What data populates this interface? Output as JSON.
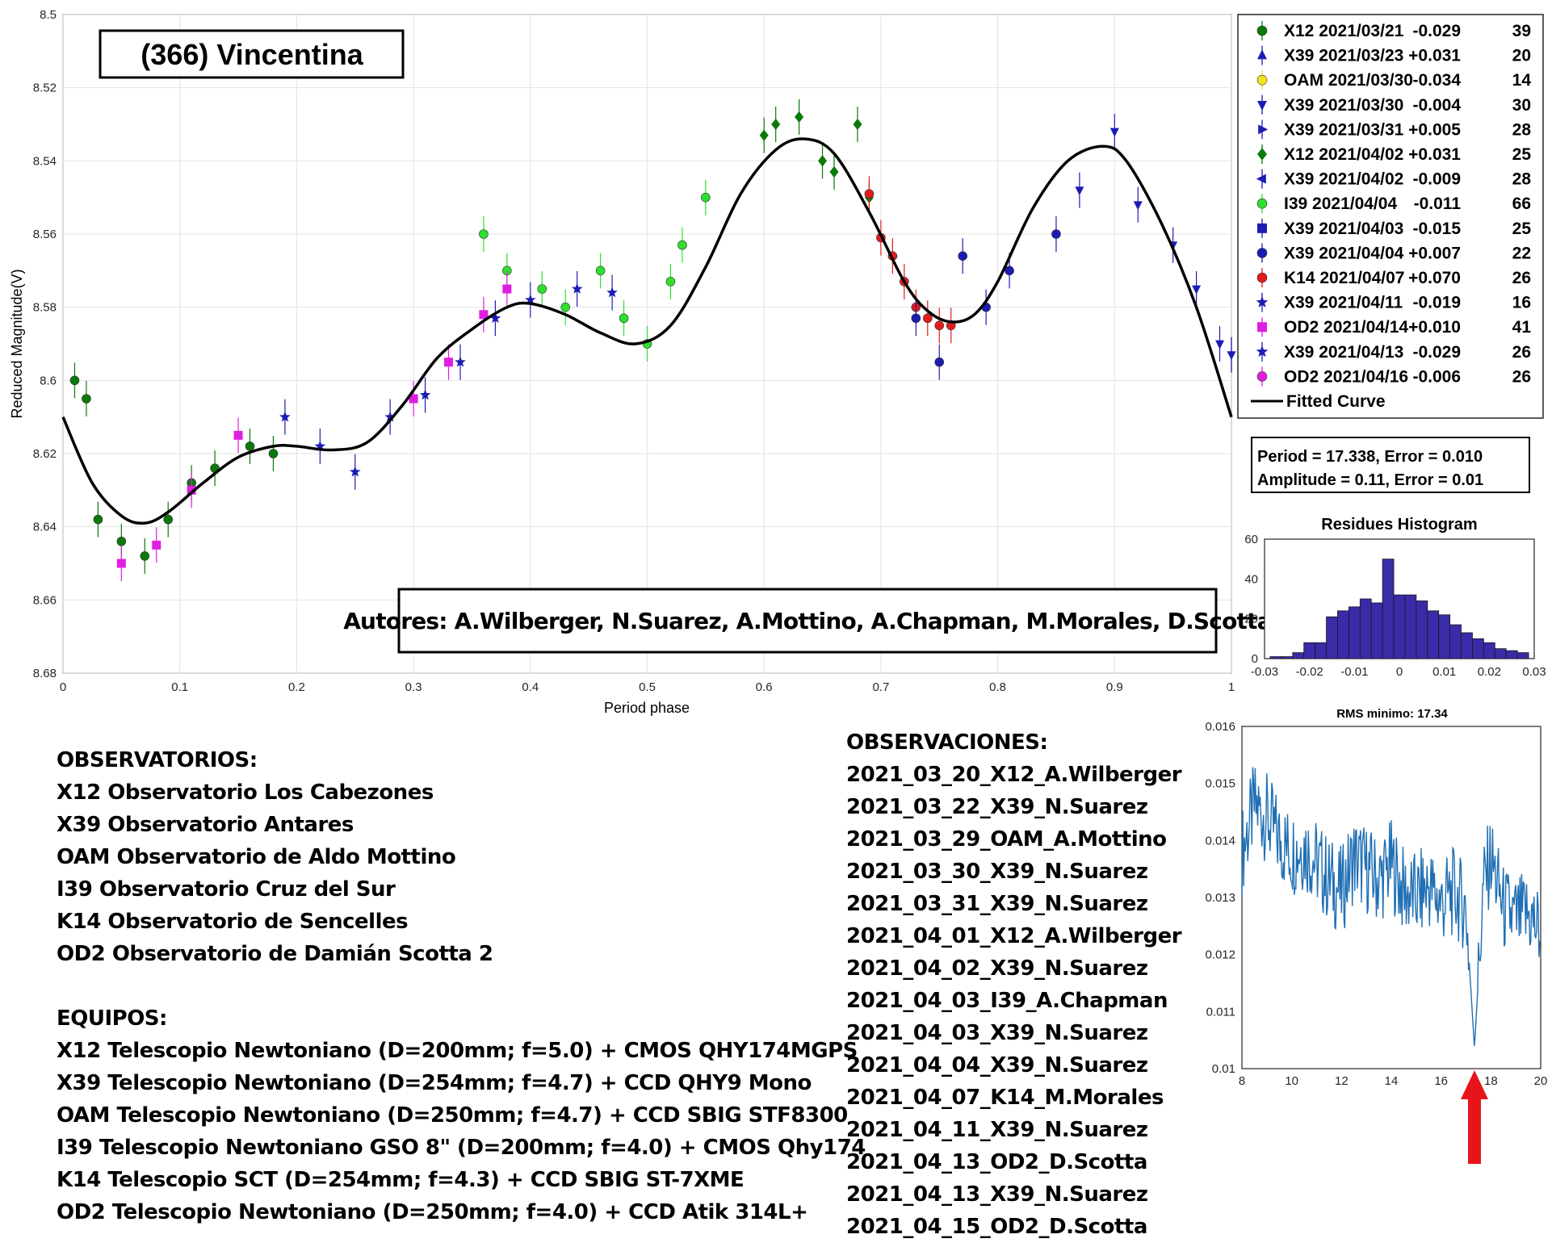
{
  "chart_data": [
    {
      "type": "scatter",
      "title": "(366) Vincentina",
      "xlabel": "Period phase",
      "ylabel": "Reduced Magnitude(V)",
      "xlim": [
        0,
        1
      ],
      "ylim": [
        8.5,
        8.68
      ],
      "y_inverted": true,
      "xticks": [
        "0",
        "0.1",
        "0.2",
        "0.3",
        "0.4",
        "0.5",
        "0.6",
        "0.7",
        "0.8",
        "0.9",
        "1"
      ],
      "yticks": [
        "8.5",
        "8.52",
        "8.54",
        "8.56",
        "8.58",
        "8.6",
        "8.62",
        "8.64",
        "8.66",
        "8.68"
      ],
      "grid": true,
      "legend_position": "right",
      "legend": [
        {
          "code": "X12",
          "date": "2021/03/21",
          "offset": "-0.029",
          "count": "39",
          "color": "#0a7a0a",
          "marker": "circle"
        },
        {
          "code": "X39",
          "date": "2021/03/23",
          "offset": "+0.031",
          "count": "20",
          "color": "#1c1cb4",
          "marker": "triangle-up"
        },
        {
          "code": "OAM",
          "date": "2021/03/30",
          "offset": "-0.034",
          "count": "14",
          "color": "#f2e21e",
          "marker": "circle"
        },
        {
          "code": "X39",
          "date": "2021/03/30",
          "offset": "-0.004",
          "count": "30",
          "color": "#1c1cb4",
          "marker": "triangle-down"
        },
        {
          "code": "X39",
          "date": "2021/03/31",
          "offset": "+0.005",
          "count": "28",
          "color": "#1c1cb4",
          "marker": "triangle-right"
        },
        {
          "code": "X12",
          "date": "2021/04/02",
          "offset": "+0.031",
          "count": "25",
          "color": "#0a7a0a",
          "marker": "diamond"
        },
        {
          "code": "X39",
          "date": "2021/04/02",
          "offset": "-0.009",
          "count": "28",
          "color": "#1c1cb4",
          "marker": "triangle-left"
        },
        {
          "code": "I39",
          "date": "2021/04/04",
          "offset": "-0.011",
          "count": "66",
          "color": "#2ee02e",
          "marker": "circle"
        },
        {
          "code": "X39",
          "date": "2021/04/03",
          "offset": "-0.015",
          "count": "25",
          "color": "#1c1cb4",
          "marker": "square"
        },
        {
          "code": "X39",
          "date": "2021/04/04",
          "offset": "+0.007",
          "count": "22",
          "color": "#1c1cb4",
          "marker": "circle"
        },
        {
          "code": "K14",
          "date": "2021/04/07",
          "offset": "+0.070",
          "count": "26",
          "color": "#e21c1c",
          "marker": "circle"
        },
        {
          "code": "X39",
          "date": "2021/04/11",
          "offset": "-0.019",
          "count": "16",
          "color": "#1c1cb4",
          "marker": "star"
        },
        {
          "code": "OD2",
          "date": "2021/04/14",
          "offset": "+0.010",
          "count": "41",
          "color": "#e01ee0",
          "marker": "square"
        },
        {
          "code": "X39",
          "date": "2021/04/13",
          "offset": "-0.029",
          "count": "26",
          "color": "#1c1cb4",
          "marker": "star"
        },
        {
          "code": "OD2",
          "date": "2021/04/16",
          "offset": "-0.006",
          "count": "26",
          "color": "#e01ee0",
          "marker": "circle"
        }
      ],
      "fitted_curve_label": "Fitted Curve",
      "fitted_curve": {
        "x": [
          0,
          0.025,
          0.05,
          0.07,
          0.09,
          0.12,
          0.15,
          0.18,
          0.2,
          0.23,
          0.26,
          0.29,
          0.32,
          0.35,
          0.38,
          0.4,
          0.43,
          0.46,
          0.49,
          0.52,
          0.55,
          0.58,
          0.61,
          0.635,
          0.66,
          0.69,
          0.72,
          0.74,
          0.76,
          0.78,
          0.8,
          0.83,
          0.86,
          0.89,
          0.91,
          0.94,
          0.97,
          1.0
        ],
        "y": [
          8.61,
          8.628,
          8.637,
          8.639,
          8.636,
          8.628,
          8.621,
          8.618,
          8.618,
          8.619,
          8.617,
          8.607,
          8.594,
          8.586,
          8.58,
          8.579,
          8.582,
          8.587,
          8.59,
          8.585,
          8.569,
          8.549,
          8.537,
          8.534,
          8.538,
          8.554,
          8.573,
          8.581,
          8.584,
          8.582,
          8.573,
          8.553,
          8.54,
          8.536,
          8.54,
          8.557,
          8.58,
          8.61
        ]
      },
      "series_points": [
        {
          "name": "X12 2021/03/21",
          "x": [
            0.01,
            0.02,
            0.03,
            0.05,
            0.07,
            0.09,
            0.11,
            0.13,
            0.16,
            0.18
          ],
          "y": [
            8.6,
            8.605,
            8.638,
            8.644,
            8.648,
            8.638,
            8.628,
            8.624,
            8.618,
            8.62
          ]
        },
        {
          "name": "X39 2021/03/30",
          "x": [
            0.87,
            0.9,
            0.92,
            0.95,
            0.97,
            0.99,
            1.0
          ],
          "y": [
            8.548,
            8.532,
            8.552,
            8.563,
            8.575,
            8.59,
            8.593
          ]
        },
        {
          "name": "X12 2021/04/02",
          "x": [
            0.6,
            0.61,
            0.63,
            0.65,
            0.66,
            0.68,
            0.69
          ],
          "y": [
            8.533,
            8.53,
            8.528,
            8.54,
            8.543,
            8.53,
            8.55
          ]
        },
        {
          "name": "I39 2021/04/04",
          "x": [
            0.36,
            0.38,
            0.41,
            0.43,
            0.46,
            0.48,
            0.5,
            0.52,
            0.53,
            0.55
          ],
          "y": [
            8.56,
            8.57,
            8.575,
            8.58,
            8.57,
            8.583,
            8.59,
            8.573,
            8.563,
            8.55
          ]
        },
        {
          "name": "K14 2021/04/07",
          "x": [
            0.69,
            0.7,
            0.71,
            0.72,
            0.73,
            0.74,
            0.75,
            0.76
          ],
          "y": [
            8.549,
            8.561,
            8.566,
            8.573,
            8.58,
            8.583,
            8.585,
            8.585
          ]
        },
        {
          "name": "X39 2021/04/04",
          "x": [
            0.73,
            0.75,
            0.77,
            0.79,
            0.81,
            0.85
          ],
          "y": [
            8.583,
            8.595,
            8.566,
            8.58,
            8.57,
            8.56
          ]
        },
        {
          "name": "OD2 2021/04/14",
          "x": [
            0.05,
            0.08,
            0.11,
            0.15,
            0.3,
            0.33,
            0.36,
            0.38
          ],
          "y": [
            8.65,
            8.645,
            8.63,
            8.615,
            8.605,
            8.595,
            8.582,
            8.575
          ]
        },
        {
          "name": "X39 2021/04/11",
          "x": [
            0.19,
            0.22,
            0.25,
            0.28,
            0.31,
            0.34,
            0.37,
            0.4,
            0.44,
            0.47
          ],
          "y": [
            8.61,
            8.618,
            8.625,
            8.61,
            8.604,
            8.595,
            8.583,
            8.578,
            8.575,
            8.576
          ]
        }
      ],
      "fit_box": {
        "line1": "Period =  17.338, Error = 0.010",
        "line2": "Amplitude = 0.11, Error = 0.01"
      },
      "authors": "Autores: A.Wilberger, N.Suarez, A.Mottino, A.Chapman, M.Morales, D.Scotta"
    },
    {
      "type": "bar",
      "title": "Residues Histogram",
      "xlim": [
        -0.03,
        0.03
      ],
      "ylim": [
        0,
        60
      ],
      "xticks": [
        "-0.03",
        "-0.02",
        "-0.01",
        "0",
        "0.01",
        "0.02",
        "0.03"
      ],
      "yticks": [
        "0",
        "20",
        "40",
        "60"
      ],
      "bin_centers": [
        -0.0275,
        -0.025,
        -0.0225,
        -0.02,
        -0.0175,
        -0.015,
        -0.0125,
        -0.01,
        -0.0075,
        -0.005,
        -0.0025,
        0,
        0.0025,
        0.005,
        0.0075,
        0.01,
        0.0125,
        0.015,
        0.0175,
        0.02,
        0.0225,
        0.025,
        0.0275
      ],
      "values": [
        1,
        1,
        3,
        8,
        8,
        21,
        24,
        26,
        30,
        28,
        50,
        32,
        32,
        29,
        24,
        22,
        17,
        13,
        10,
        8,
        5,
        4,
        3
      ],
      "color": "#3a2ba8"
    },
    {
      "type": "line",
      "title": "RMS minimo: 17.34",
      "xlim": [
        8,
        20
      ],
      "ylim": [
        0.01,
        0.016
      ],
      "xticks": [
        "8",
        "10",
        "12",
        "14",
        "16",
        "18",
        "20"
      ],
      "yticks": [
        "0.01",
        "0.011",
        "0.012",
        "0.013",
        "0.014",
        "0.015",
        "0.016"
      ],
      "x": [
        8,
        8.5,
        9,
        9.5,
        10,
        10.5,
        11,
        11.5,
        12,
        12.5,
        13,
        13.5,
        14,
        14.5,
        15,
        15.5,
        16,
        16.5,
        17,
        17.34,
        17.7,
        18,
        18.5,
        19,
        19.5,
        20
      ],
      "y": [
        0.0138,
        0.0146,
        0.0144,
        0.014,
        0.0138,
        0.0139,
        0.0136,
        0.0133,
        0.0131,
        0.0137,
        0.0135,
        0.0133,
        0.0136,
        0.0131,
        0.013,
        0.0132,
        0.0129,
        0.0131,
        0.0128,
        0.01035,
        0.0132,
        0.0137,
        0.0128,
        0.0126,
        0.0127,
        0.0124
      ],
      "color": "#1f6fb4",
      "marker_arrow_at": 17.34
    }
  ],
  "observatorios": {
    "heading": "OBSERVATORIOS:",
    "items": [
      "X12 Observatorio Los Cabezones",
      "X39 Observatorio Antares",
      "OAM Observatorio de Aldo Mottino",
      "I39 Observatorio Cruz del Sur",
      "K14 Observatorio de Sencelles",
      "OD2 Observatorio de Damián Scotta 2"
    ]
  },
  "equipos": {
    "heading": "EQUIPOS:",
    "items": [
      "X12 Telescopio Newtoniano (D=200mm; f=5.0) + CMOS QHY174MGPS",
      "X39 Telescopio Newtoniano (D=254mm; f=4.7) + CCD QHY9 Mono",
      "OAM Telescopio Newtoniano (D=250mm; f=4.7) + CCD SBIG STF8300",
      "I39 Telescopio Newtoniano GSO 8\" (D=200mm; f=4.0) + CMOS Qhy174",
      "K14 Telescopio SCT (D=254mm; f=4.3) + CCD SBIG ST-7XME",
      "OD2 Telescopio Newtoniano (D=250mm; f=4.0) + CCD Atik 314L+"
    ]
  },
  "observaciones": {
    "heading": "OBSERVACIONES:",
    "items": [
      "2021_03_20_X12_A.Wilberger",
      "2021_03_22_X39_N.Suarez",
      "2021_03_29_OAM_A.Mottino",
      "2021_03_30_X39_N.Suarez",
      "2021_03_31_X39_N.Suarez",
      "2021_04_01_X12_A.Wilberger",
      "2021_04_02_X39_N.Suarez",
      "2021_04_03_I39_A.Chapman",
      "2021_04_03_X39_N.Suarez",
      "2021_04_04_X39_N.Suarez",
      "2021_04_07_K14_M.Morales",
      "2021_04_11_X39_N.Suarez",
      "2021_04_13_OD2_D.Scotta",
      "2021_04_13_X39_N.Suarez",
      "2021_04_15_OD2_D.Scotta"
    ]
  }
}
